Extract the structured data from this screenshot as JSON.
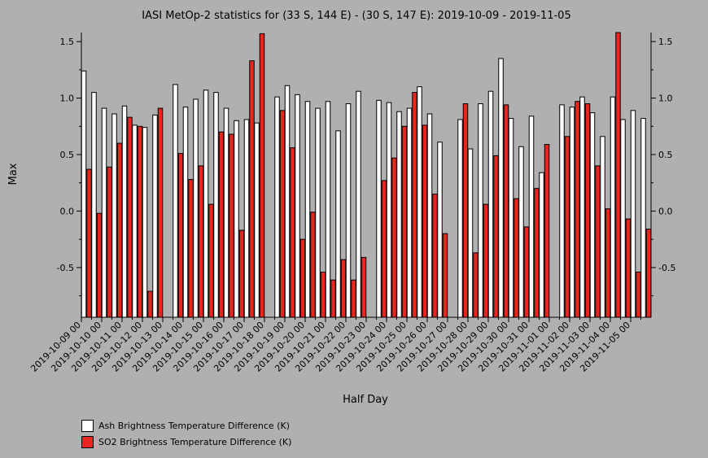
{
  "chart_data": {
    "type": "bar",
    "title": "IASI MetOp-2 statistics for (33 S, 144 E) - (30 S, 147 E): 2019-10-09 - 2019-11-05",
    "xlabel": "Half Day",
    "ylabel": "Max",
    "ylim": [
      -0.94,
      1.58
    ],
    "yticks": [
      "-0.5",
      "0.0",
      "0.5",
      "1.0",
      "1.5"
    ],
    "ytick_values": [
      -0.5,
      0.0,
      0.5,
      1.0,
      1.5
    ],
    "grid": false,
    "legend_position": "bottom-left",
    "categories": [
      "2019-10-09 00",
      "",
      "2019-10-10 00",
      "",
      "2019-10-11 00",
      "",
      "2019-10-12 00",
      "",
      "2019-10-13 00",
      "",
      "2019-10-14 00",
      "",
      "2019-10-15 00",
      "",
      "2019-10-16 00",
      "",
      "2019-10-17 00",
      "",
      "2019-10-18 00",
      "",
      "2019-10-19 00",
      "",
      "2019-10-20 00",
      "",
      "2019-10-21 00",
      "",
      "2019-10-22 00",
      "",
      "2019-10-23 00",
      "",
      "2019-10-24 00",
      "",
      "2019-10-25 00",
      "",
      "2019-10-26 00",
      "",
      "2019-10-27 00",
      "",
      "2019-10-28 00",
      "",
      "2019-10-29 00",
      "",
      "2019-10-30 00",
      "",
      "2019-10-31 00",
      "",
      "2019-11-01 00",
      "",
      "2019-11-02 00",
      "",
      "2019-11-03 00",
      "",
      "2019-11-04 00",
      "",
      "2019-11-05 00",
      ""
    ],
    "series": [
      {
        "name": "Ash Brightness Temperature Difference (K)",
        "color": "#ffffff",
        "values": [
          1.24,
          1.05,
          0.91,
          0.86,
          0.93,
          0.76,
          0.74,
          0.85,
          null,
          1.12,
          0.92,
          0.99,
          1.07,
          1.05,
          0.91,
          0.8,
          0.81,
          0.78,
          null,
          1.01,
          1.11,
          1.03,
          0.97,
          0.91,
          0.97,
          0.71,
          0.95,
          1.06,
          null,
          0.98,
          0.96,
          0.88,
          0.91,
          1.1,
          0.86,
          0.61,
          null,
          0.81,
          0.55,
          0.95,
          1.06,
          1.35,
          0.82,
          0.57,
          0.84,
          0.34,
          null,
          0.94,
          0.92,
          1.01,
          0.87,
          0.66,
          1.01,
          0.81,
          0.89,
          0.82
        ]
      },
      {
        "name": "SO2 Brightness Temperature Difference (K)",
        "color": "#e8251f",
        "values": [
          0.37,
          -0.02,
          0.39,
          0.6,
          0.83,
          0.75,
          -0.71,
          0.91,
          null,
          0.51,
          0.28,
          0.4,
          0.06,
          0.7,
          0.68,
          -0.17,
          1.33,
          1.57,
          null,
          0.89,
          0.56,
          -0.25,
          -0.01,
          -0.54,
          -0.61,
          -0.43,
          -0.61,
          -0.41,
          null,
          0.27,
          0.47,
          0.75,
          1.05,
          0.76,
          0.15,
          -0.2,
          null,
          0.95,
          -0.37,
          0.06,
          0.49,
          0.94,
          0.11,
          -0.14,
          0.2,
          0.59,
          null,
          0.66,
          0.97,
          0.95,
          0.4,
          0.02,
          1.58,
          -0.07,
          -0.54,
          -0.16
        ]
      }
    ]
  }
}
